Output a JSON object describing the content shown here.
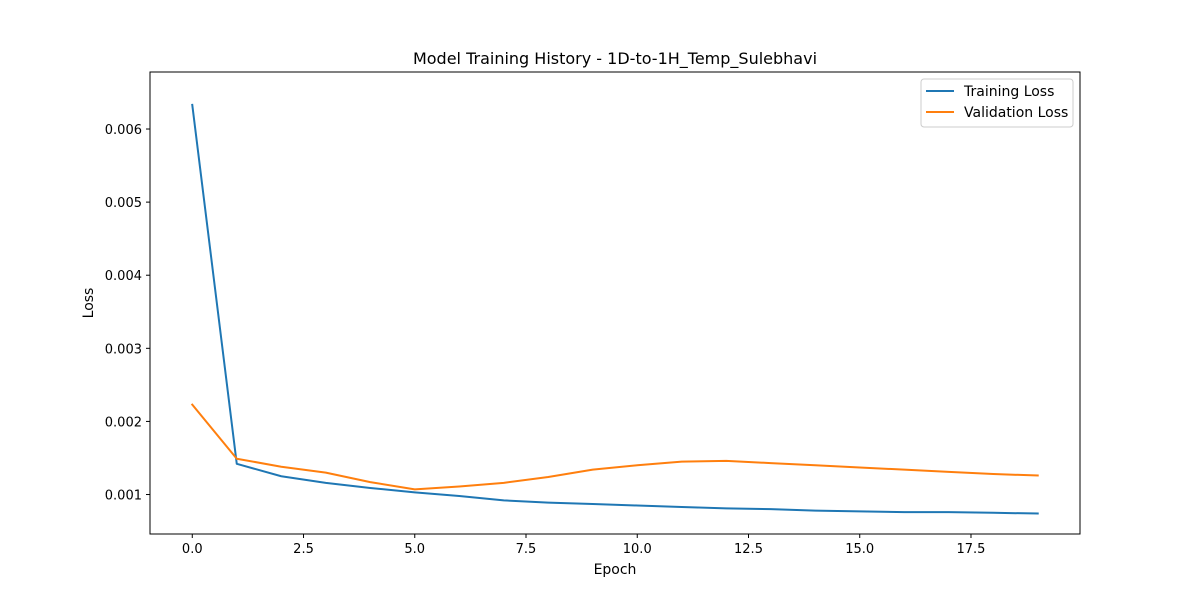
{
  "chart_data": {
    "type": "line",
    "title": "Model Training History - 1D-to-1H_Temp_Sulebhavi",
    "xlabel": "Epoch",
    "ylabel": "Loss",
    "xlim": [
      -0.95,
      19.95
    ],
    "ylim": [
      0.00046,
      0.00678
    ],
    "xticks": [
      0,
      2.5,
      5,
      7.5,
      10,
      12.5,
      15,
      17.5
    ],
    "xtick_labels": [
      "0.0",
      "2.5",
      "5.0",
      "7.5",
      "10.0",
      "12.5",
      "15.0",
      "17.5"
    ],
    "yticks": [
      0.001,
      0.002,
      0.003,
      0.004,
      0.005,
      0.006
    ],
    "ytick_labels": [
      "0.001",
      "0.002",
      "0.003",
      "0.004",
      "0.005",
      "0.006"
    ],
    "grid": false,
    "legend_position": "top-right",
    "x": [
      0,
      1,
      2,
      3,
      4,
      5,
      6,
      7,
      8,
      9,
      10,
      11,
      12,
      13,
      14,
      15,
      16,
      17,
      18,
      19
    ],
    "series": [
      {
        "name": "Training Loss",
        "color": "#1f77b4",
        "values": [
          0.00633,
          0.00142,
          0.00125,
          0.00116,
          0.00109,
          0.00103,
          0.00098,
          0.00092,
          0.00089,
          0.00087,
          0.00085,
          0.00083,
          0.00081,
          0.0008,
          0.00078,
          0.00077,
          0.00076,
          0.00076,
          0.00075,
          0.00074
        ]
      },
      {
        "name": "Validation Loss",
        "color": "#ff7f0e",
        "values": [
          0.00223,
          0.00149,
          0.00138,
          0.0013,
          0.00117,
          0.00107,
          0.00111,
          0.00116,
          0.00124,
          0.00134,
          0.0014,
          0.00145,
          0.00146,
          0.00143,
          0.0014,
          0.00137,
          0.00134,
          0.00131,
          0.00128,
          0.00126
        ]
      }
    ]
  }
}
